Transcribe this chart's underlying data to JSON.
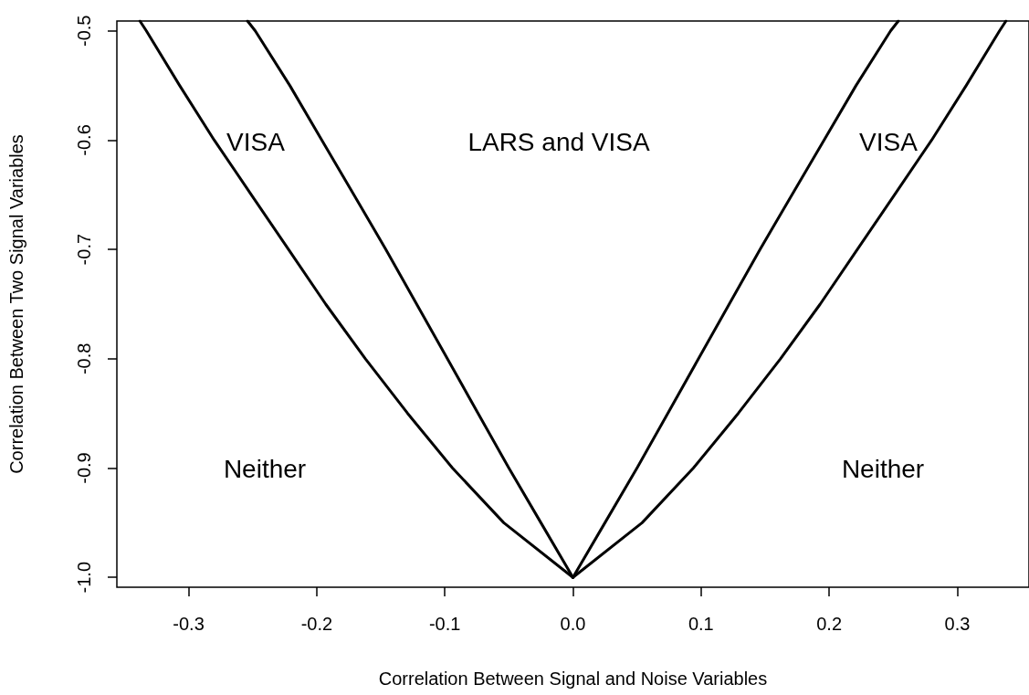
{
  "chart_data": {
    "type": "line",
    "xlabel": "Correlation Between Signal and Noise Variables",
    "ylabel": "Correlation Between Two Signal Variables",
    "xlim": [
      -0.356,
      0.356
    ],
    "ylim": [
      -1.009,
      -0.491
    ],
    "xticks": [
      -0.3,
      -0.2,
      -0.1,
      {
        "value": 0,
        "label": "0.0"
      },
      0.1,
      0.2,
      0.3
    ],
    "yticks": [
      {
        "value": -1,
        "label": "-1.0"
      },
      -0.9,
      -0.8,
      -0.7,
      -0.6,
      -0.5
    ],
    "grid": false,
    "marker": "none",
    "line_style": "solid",
    "series": [
      {
        "color": "#000000",
        "x": [
          0,
          -0.054,
          -0.094,
          -0.129,
          -0.162,
          -0.193,
          -0.222,
          -0.251,
          -0.28,
          -0.307,
          -0.333,
          -0.338
        ],
        "values": [
          -1,
          -0.95,
          -0.9,
          -0.85,
          -0.8,
          -0.75,
          -0.7,
          -0.65,
          -0.6,
          -0.55,
          -0.5,
          -0.491
        ]
      },
      {
        "color": "#000000",
        "x": [
          0,
          -0.025,
          -0.05,
          -0.074,
          -0.098,
          -0.122,
          -0.146,
          -0.171,
          -0.196,
          -0.221,
          -0.248,
          -0.254
        ],
        "values": [
          -1,
          -0.95,
          -0.9,
          -0.85,
          -0.8,
          -0.75,
          -0.7,
          -0.65,
          -0.6,
          -0.55,
          -0.5,
          -0.491
        ]
      },
      {
        "color": "#000000",
        "x": [
          0,
          0.025,
          0.05,
          0.074,
          0.098,
          0.122,
          0.146,
          0.171,
          0.196,
          0.221,
          0.248,
          0.254
        ],
        "values": [
          -1,
          -0.95,
          -0.9,
          -0.85,
          -0.8,
          -0.75,
          -0.7,
          -0.65,
          -0.6,
          -0.55,
          -0.5,
          -0.491
        ]
      },
      {
        "color": "#000000",
        "x": [
          0,
          0.054,
          0.094,
          0.129,
          0.162,
          0.193,
          0.222,
          0.251,
          0.28,
          0.307,
          0.333,
          0.338
        ],
        "values": [
          -1,
          -0.95,
          -0.9,
          -0.85,
          -0.8,
          -0.75,
          -0.7,
          -0.65,
          -0.6,
          -0.55,
          -0.5,
          -0.491
        ]
      }
    ],
    "annotations": [
      "VISA",
      "LARS and VISA",
      "VISA",
      "Neither",
      "Neither"
    ]
  }
}
